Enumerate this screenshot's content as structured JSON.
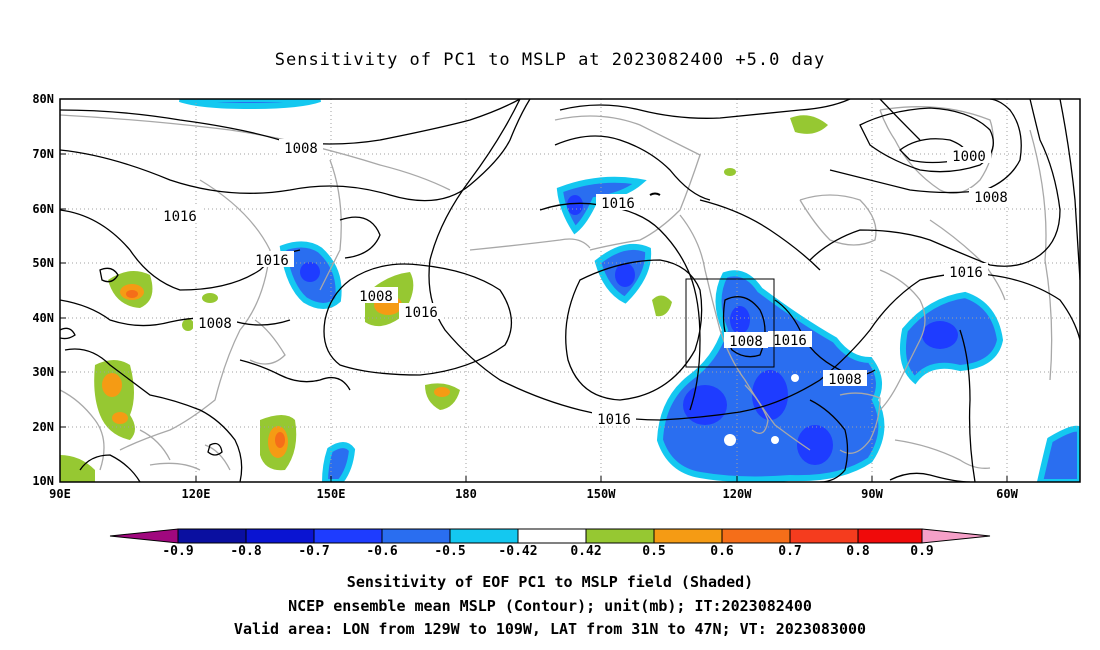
{
  "title": "Sensitivity of PC1 to MSLP at 2023082400 +5.0 day",
  "lat_labels": [
    "80N",
    "70N",
    "60N",
    "50N",
    "40N",
    "30N",
    "20N",
    "10N"
  ],
  "lon_labels": [
    "90E",
    "120E",
    "150E",
    "180",
    "150W",
    "120W",
    "90W",
    "60W"
  ],
  "contour_labels": [
    "1008",
    "1016",
    "1016",
    "1008",
    "1008",
    "1016",
    "1016",
    "1016",
    "1008",
    "1016",
    "1008",
    "1000",
    "1008",
    "1016"
  ],
  "colorbar": {
    "labels": [
      "-0.9",
      "-0.8",
      "-0.7",
      "-0.6",
      "-0.5",
      "-0.42",
      "0.42",
      "0.5",
      "0.6",
      "0.7",
      "0.8",
      "0.9"
    ],
    "colors": [
      "#a0087e",
      "#0a0fa0",
      "#0a14d2",
      "#1e3cff",
      "#2a6ef0",
      "#28a0f0",
      "#14c8f0",
      "#ffffff",
      "#96c832",
      "#f59b14",
      "#f56e19",
      "#f53c1e",
      "#f00a0a",
      "#f5a0c8"
    ]
  },
  "captions": [
    "Sensitivity of EOF PC1 to MSLP field (Shaded)",
    "NCEP ensemble mean MSLP (Contour); unit(mb); IT:2023082400",
    "Valid area: LON from 129W to 109W, LAT from 31N to 47N; VT: 2023083000"
  ]
}
